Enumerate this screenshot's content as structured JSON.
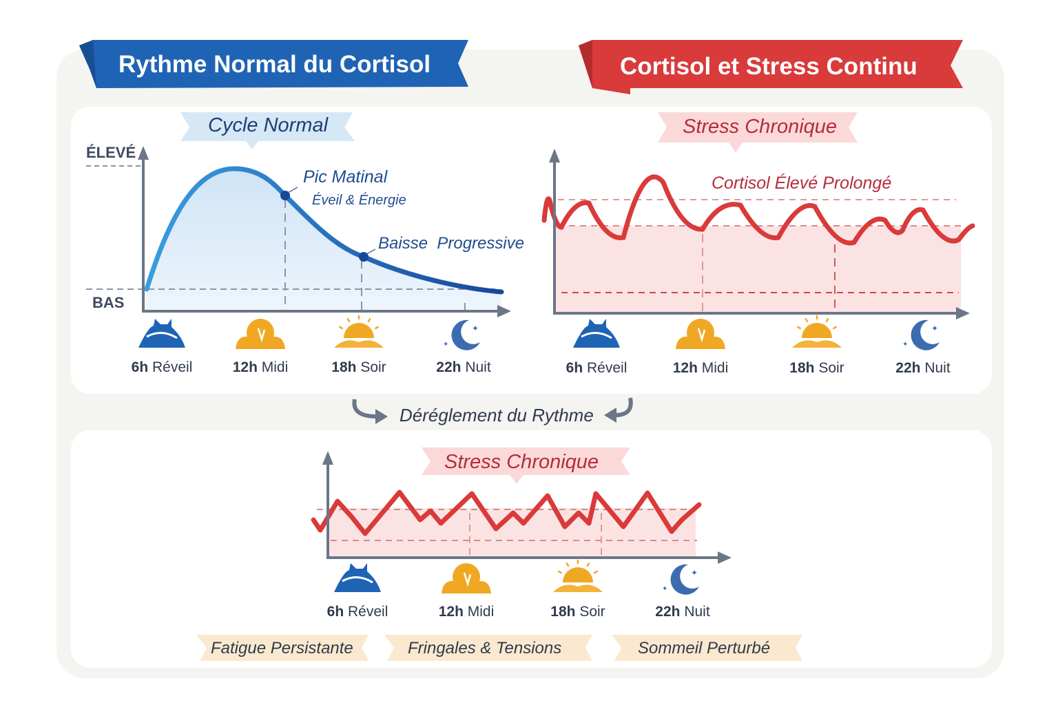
{
  "left_panel": {
    "title": "Rythme Normal du Cortisol",
    "subtitle": "Cycle Normal",
    "y_high": "ÉLEVÉ",
    "y_low": "BAS",
    "annotation_peak": "Pic Matinal",
    "annotation_peak_sub": "Éveil & Énergie",
    "annotation_decline": "Baisse  Progressive",
    "curve_color": "#1f63b5"
  },
  "right_panel": {
    "title": "Cortisol et Stress Continu",
    "subtitle": "Stress Chronique",
    "annotation": "Cortisol Élevé Prolongé",
    "curve_color": "#d93a3a"
  },
  "middle": {
    "transition": "Déréglement du Rythme"
  },
  "bottom_panel": {
    "subtitle": "Stress Chronique",
    "tags": [
      "Fatigue Persistante",
      "Fringales & Tensions",
      "Sommeil Perturbé"
    ]
  },
  "time_labels": [
    {
      "hour": "6h",
      "word": "Réveil",
      "icon": "waking-icon"
    },
    {
      "hour": "12h",
      "word": "Midi",
      "icon": "midday-sun-icon"
    },
    {
      "hour": "18h",
      "word": "Soir",
      "icon": "sunset-icon"
    },
    {
      "hour": "22h",
      "word": "Nuit",
      "icon": "moon-icon"
    }
  ],
  "colors": {
    "blue": "#1f63b5",
    "red": "#d93a3a",
    "gold": "#f0a824",
    "text": "#2f3a4d"
  }
}
